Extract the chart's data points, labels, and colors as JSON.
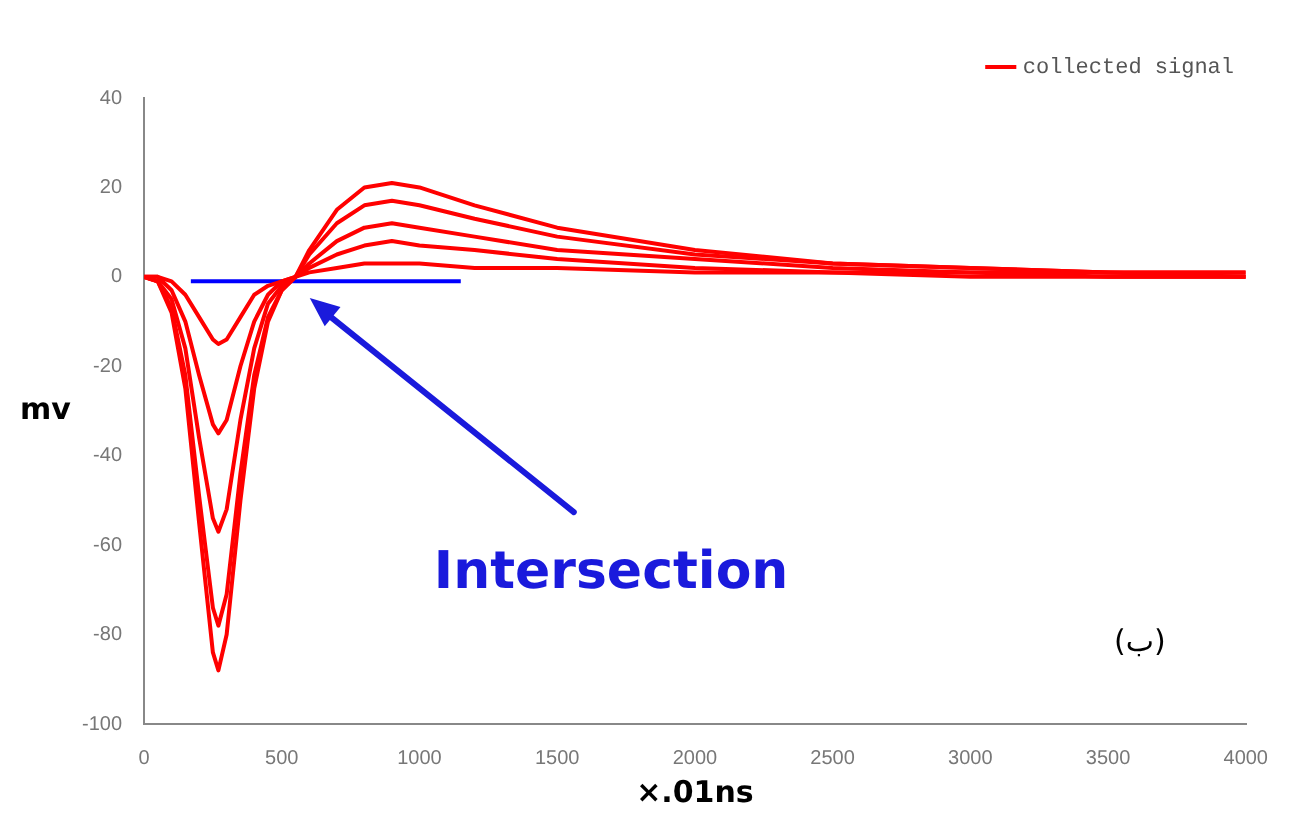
{
  "chart_data": {
    "type": "line",
    "xlabel": "×.01ns",
    "ylabel": "mv",
    "xlim": [
      0,
      4000
    ],
    "ylim": [
      -100,
      40
    ],
    "xticks": [
      0,
      500,
      1000,
      1500,
      2000,
      2500,
      3000,
      3500,
      4000
    ],
    "yticks": [
      -100,
      -80,
      -60,
      -40,
      -20,
      0,
      20,
      40
    ],
    "grid": false,
    "legend": "top right",
    "marker": "none",
    "line_style": "solid",
    "x": [
      0,
      50,
      100,
      150,
      200,
      250,
      270,
      300,
      350,
      400,
      450,
      500,
      550,
      600,
      700,
      800,
      900,
      1000,
      1200,
      1500,
      2000,
      2500,
      3000,
      3500,
      4000
    ],
    "series": [
      {
        "name": "collected signal",
        "color": "#ff0000",
        "values": [
          0,
          -1,
          -8,
          -25,
          -55,
          -84,
          -88,
          -80,
          -50,
          -25,
          -10,
          -3,
          0,
          6,
          15,
          20,
          21,
          20,
          16,
          11,
          6,
          3,
          2,
          1,
          1
        ]
      },
      {
        "color": "#ff0000",
        "values": [
          0,
          -1,
          -7,
          -22,
          -49,
          -74,
          -78,
          -71,
          -44,
          -22,
          -9,
          -3,
          0,
          5,
          12,
          16,
          17,
          16,
          13,
          9,
          5,
          3,
          2,
          1,
          1
        ]
      },
      {
        "color": "#ff0000",
        "values": [
          0,
          -1,
          -5,
          -16,
          -36,
          -54,
          -57,
          -52,
          -32,
          -16,
          -6,
          -2,
          0,
          3,
          8,
          11,
          12,
          11,
          9,
          6,
          4,
          2,
          1,
          1,
          0
        ]
      },
      {
        "color": "#ff0000",
        "values": [
          0,
          0,
          -3,
          -10,
          -22,
          -33,
          -35,
          -32,
          -20,
          -10,
          -4,
          -1,
          0,
          2,
          5,
          7,
          8,
          7,
          6,
          4,
          2,
          1,
          1,
          0,
          0
        ]
      },
      {
        "color": "#ff0000",
        "values": [
          0,
          0,
          -1,
          -4,
          -9,
          -14,
          -15,
          -14,
          -9,
          -4,
          -2,
          -1,
          0,
          1,
          2,
          3,
          3,
          3,
          2,
          2,
          1,
          1,
          0,
          0,
          0
        ]
      },
      {
        "color": "#0000ff",
        "x": [
          170,
          1150
        ],
        "values": [
          -1,
          -1
        ]
      }
    ],
    "annotations": [
      "Intersection",
      "(ب)"
    ]
  }
}
